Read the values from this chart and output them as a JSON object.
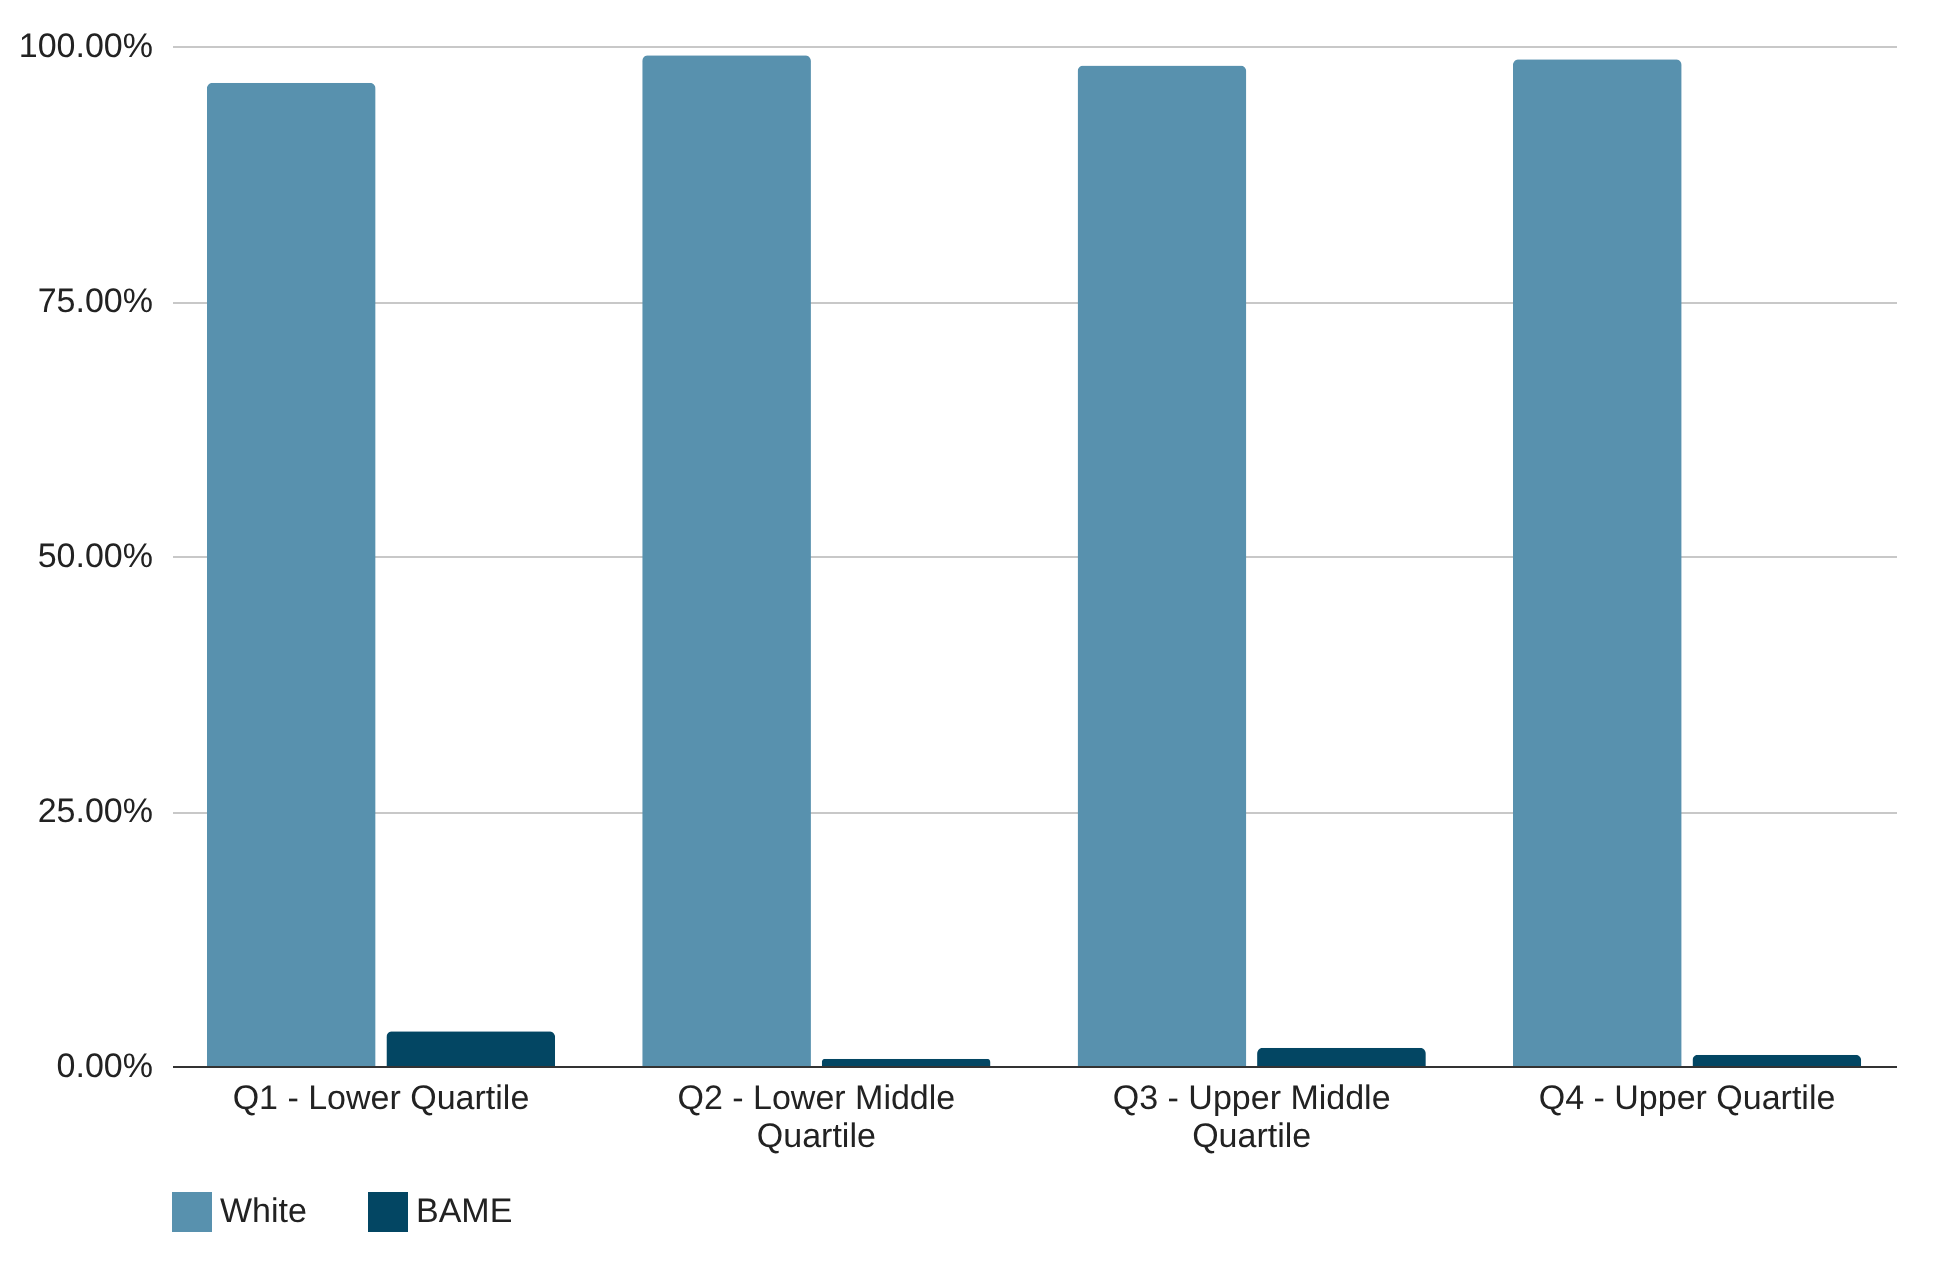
{
  "chart_data": {
    "type": "bar",
    "categories": [
      "Q1 - Lower Quartile",
      "Q2 - Lower Middle Quartile",
      "Q3 - Upper Middle Quartile",
      "Q4 - Upper Quartile"
    ],
    "series": [
      {
        "name": "White",
        "color": "#5891ae",
        "values": [
          96.4,
          99.1,
          98.1,
          98.7
        ]
      },
      {
        "name": "BAME",
        "color": "#034663",
        "values": [
          3.4,
          0.7,
          1.8,
          1.1
        ]
      }
    ],
    "ylim": [
      0,
      100
    ],
    "yticks": [
      {
        "value": 0,
        "label": "0.00%"
      },
      {
        "value": 25,
        "label": "25.00%"
      },
      {
        "value": 50,
        "label": "50.00%"
      },
      {
        "value": 75,
        "label": "75.00%"
      },
      {
        "value": 100,
        "label": "100.00%"
      }
    ],
    "grid": "y",
    "legend": "bottom"
  }
}
